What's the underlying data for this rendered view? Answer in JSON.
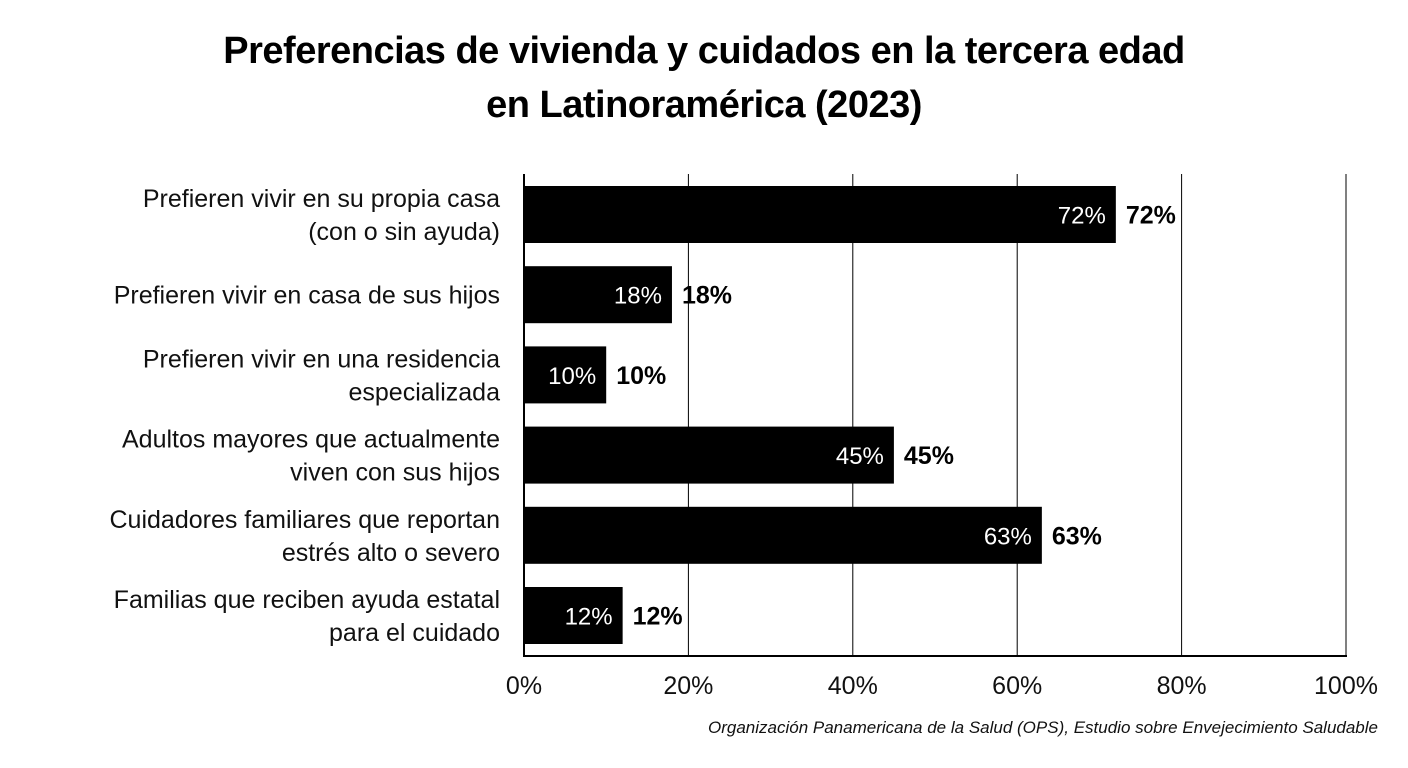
{
  "chart_data": {
    "type": "bar",
    "orientation": "horizontal",
    "title_lines": [
      "Preferencias de vivienda y cuidados en la tercera edad",
      "en Latinoramérica  (2023)"
    ],
    "categories": [
      [
        "Prefieren vivir en su propia casa",
        "(con o sin ayuda)"
      ],
      [
        "Prefieren vivir en casa de sus hijos"
      ],
      [
        "Prefieren vivir en una residencia",
        "especializada"
      ],
      [
        "Adultos mayores que actualmente",
        "viven con sus hijos"
      ],
      [
        "Cuidadores familiares que reportan",
        "estrés alto o severo"
      ],
      [
        "Familias que reciben ayuda estatal",
        "para el cuidado"
      ]
    ],
    "values": [
      72,
      18,
      10,
      45,
      63,
      12
    ],
    "value_labels": [
      "72%",
      "18%",
      "10%",
      "45%",
      "63%",
      "12%"
    ],
    "xlim": [
      0,
      100
    ],
    "xticks": [
      0,
      20,
      40,
      60,
      80,
      100
    ],
    "xtick_labels": [
      "0%",
      "20%",
      "40%",
      "60%",
      "80%",
      "100%"
    ],
    "grid": "vertical",
    "bar_color": "#000000",
    "inside_label_color": "#ffffff",
    "source": "Organización Panamericana de la Salud (OPS), Estudio sobre Envejecimiento Saludable"
  }
}
